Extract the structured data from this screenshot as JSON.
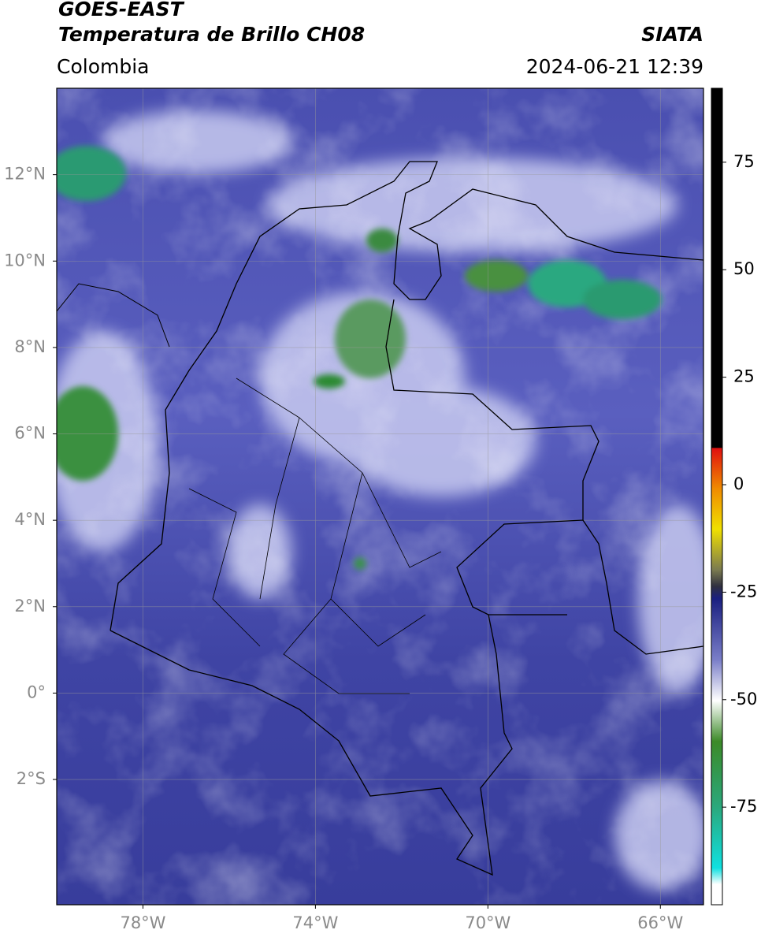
{
  "header": {
    "title": "GOES-EAST",
    "subtitle": "Temperatura de Brillo CH08",
    "agency": "SIATA",
    "region": "Colombia",
    "datetime": "2024-06-21 12:39"
  },
  "map": {
    "lon_lim": [
      -80,
      -65
    ],
    "lat_lim": [
      -4.9,
      14
    ],
    "lon_ticks": [
      {
        "value": -78,
        "label": "78°W"
      },
      {
        "value": -74,
        "label": "74°W"
      },
      {
        "value": -70,
        "label": "70°W"
      },
      {
        "value": -66,
        "label": "66°W"
      }
    ],
    "lat_ticks": [
      {
        "value": 12,
        "label": "12°N"
      },
      {
        "value": 10,
        "label": "10°N"
      },
      {
        "value": 8,
        "label": "8°N"
      },
      {
        "value": 6,
        "label": "6°N"
      },
      {
        "value": 4,
        "label": "4°N"
      },
      {
        "value": 2,
        "label": "2°N"
      },
      {
        "value": 0,
        "label": "0°"
      },
      {
        "value": -2,
        "label": "2°S"
      }
    ]
  },
  "colorbar": {
    "lim": [
      -97.7,
      92.2
    ],
    "ticks": [
      75,
      50,
      25,
      0,
      -25,
      -50,
      -75
    ]
  }
}
